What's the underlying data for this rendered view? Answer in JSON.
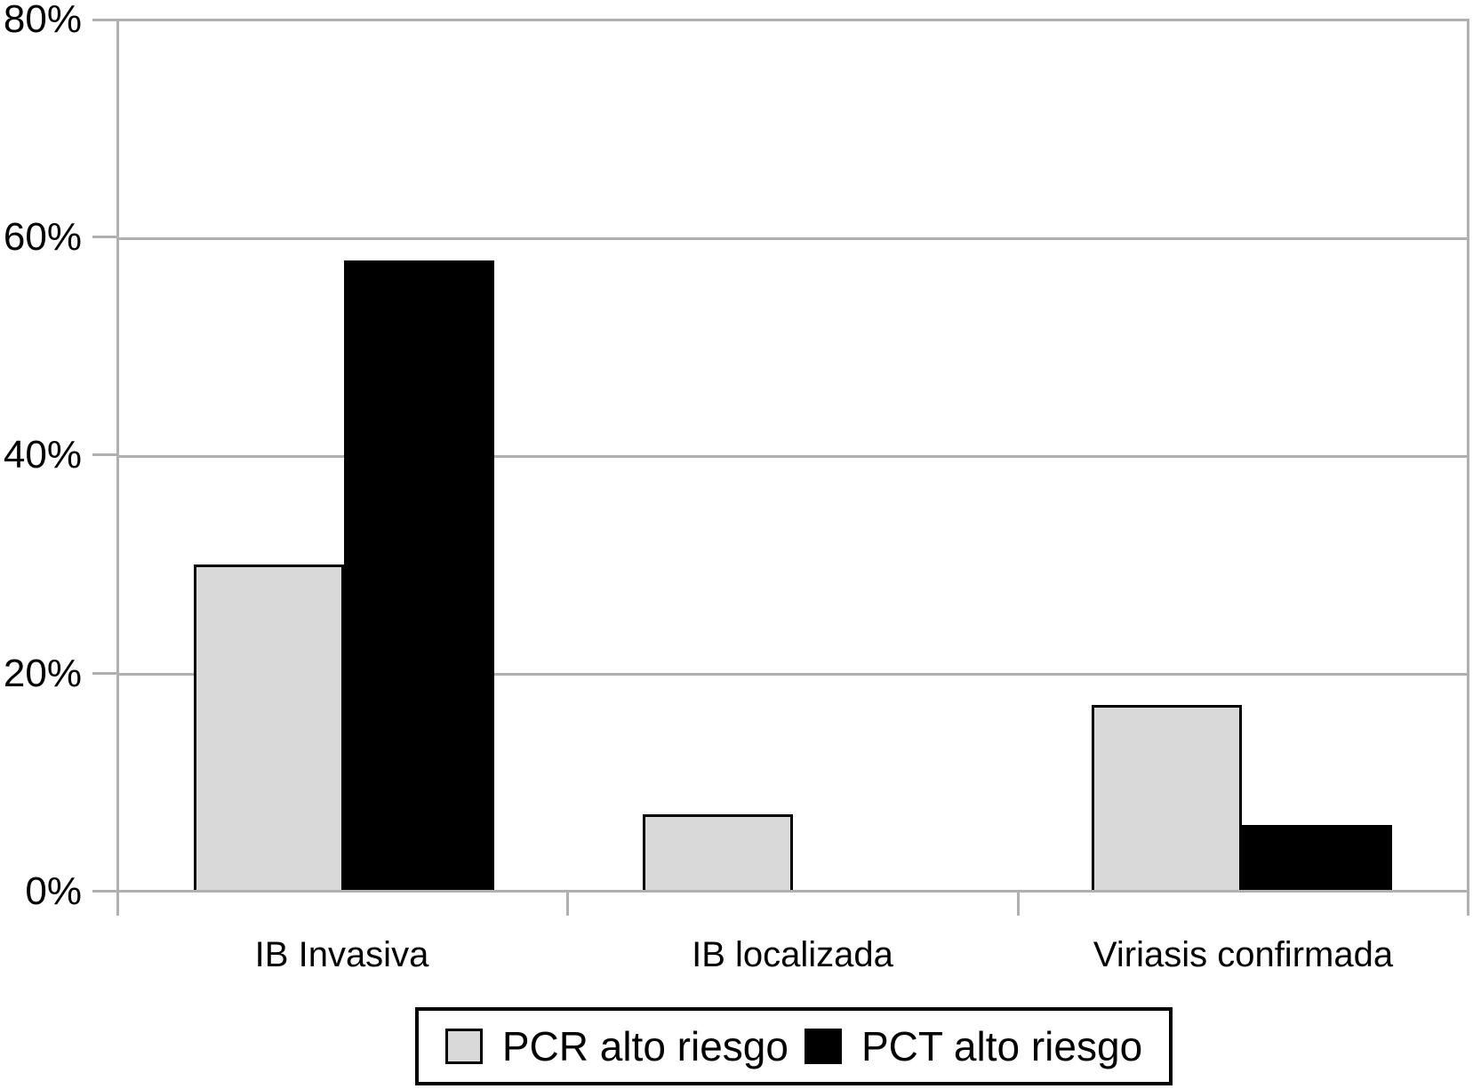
{
  "chart_data": {
    "type": "bar",
    "categories": [
      "IB Invasiva",
      "IB localizada",
      "Viriasis confirmada"
    ],
    "series": [
      {
        "name": "PCR alto riesgo",
        "color": "#d9d9d9",
        "values": [
          30,
          7,
          17
        ]
      },
      {
        "name": "PCT alto riesgo",
        "color": "#000000",
        "values": [
          58,
          0,
          6
        ]
      }
    ],
    "title": "",
    "xlabel": "",
    "ylabel": "",
    "ylim": [
      0,
      80
    ],
    "ytick_labels_top_down": [
      "80%",
      "60%",
      "40%",
      "20%",
      "0%"
    ],
    "grid": true,
    "gridline_color": "#b0b0b0",
    "bar_outline_color": "#000000",
    "legend_position": "bottom"
  }
}
